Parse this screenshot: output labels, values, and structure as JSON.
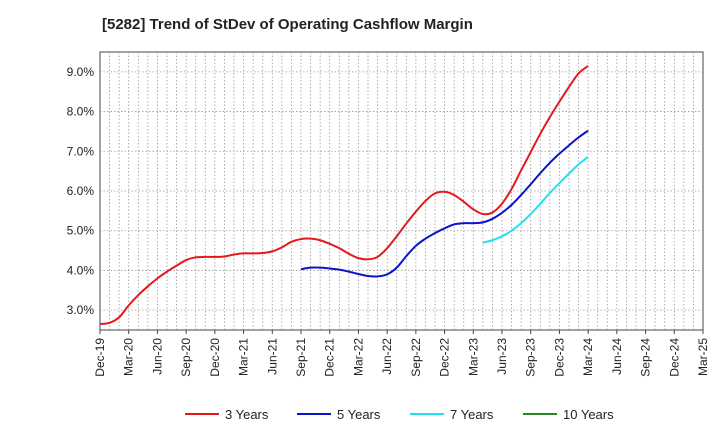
{
  "chart_data": {
    "type": "line",
    "title": "[5282]  Trend of StDev of Operating Cashflow Margin",
    "xlabel": "",
    "ylabel": "",
    "x_ticks": [
      "Dec-19",
      "Mar-20",
      "Jun-20",
      "Sep-20",
      "Dec-20",
      "Mar-21",
      "Jun-21",
      "Sep-21",
      "Dec-21",
      "Mar-22",
      "Jun-22",
      "Sep-22",
      "Dec-22",
      "Mar-23",
      "Jun-23",
      "Sep-23",
      "Dec-23",
      "Mar-24",
      "Jun-24",
      "Sep-24",
      "Dec-24",
      "Mar-25"
    ],
    "y_ticks": [
      "3.0%",
      "4.0%",
      "5.0%",
      "6.0%",
      "7.0%",
      "8.0%",
      "9.0%"
    ],
    "ylim": [
      2.5,
      9.5
    ],
    "grid": true,
    "legend_position": "bottom",
    "series": [
      {
        "name": "3 Years",
        "color": "#e31a1c",
        "start_index": 0,
        "values": [
          2.65,
          2.68,
          2.82,
          3.12,
          3.38,
          3.6,
          3.8,
          3.97,
          4.12,
          4.26,
          4.33,
          4.34,
          4.34,
          4.35,
          4.4,
          4.43,
          4.43,
          4.44,
          4.48,
          4.58,
          4.72,
          4.79,
          4.8,
          4.76,
          4.67,
          4.56,
          4.42,
          4.31,
          4.28,
          4.34,
          4.56,
          4.86,
          5.18,
          5.48,
          5.75,
          5.94,
          5.98,
          5.9,
          5.73,
          5.54,
          5.42,
          5.46,
          5.68,
          6.05,
          6.52,
          6.98,
          7.44,
          7.86,
          8.25,
          8.62,
          8.96,
          9.15
        ]
      },
      {
        "name": "5 Years",
        "color": "#0a14c8",
        "start_index": 21,
        "values": [
          4.03,
          4.07,
          4.07,
          4.05,
          4.02,
          3.97,
          3.91,
          3.86,
          3.85,
          3.9,
          4.07,
          4.36,
          4.62,
          4.8,
          4.94,
          5.06,
          5.16,
          5.19,
          5.19,
          5.21,
          5.3,
          5.45,
          5.65,
          5.9,
          6.17,
          6.45,
          6.71,
          6.94,
          7.15,
          7.35,
          7.52
        ]
      },
      {
        "name": "7 Years",
        "color": "#22e0f0",
        "start_index": 40,
        "values": [
          4.7,
          4.76,
          4.86,
          5.0,
          5.19,
          5.42,
          5.68,
          5.95,
          6.2,
          6.44,
          6.67,
          6.86
        ]
      },
      {
        "name": "10 Years",
        "color": "#228b22",
        "start_index": 0,
        "values": []
      }
    ]
  }
}
